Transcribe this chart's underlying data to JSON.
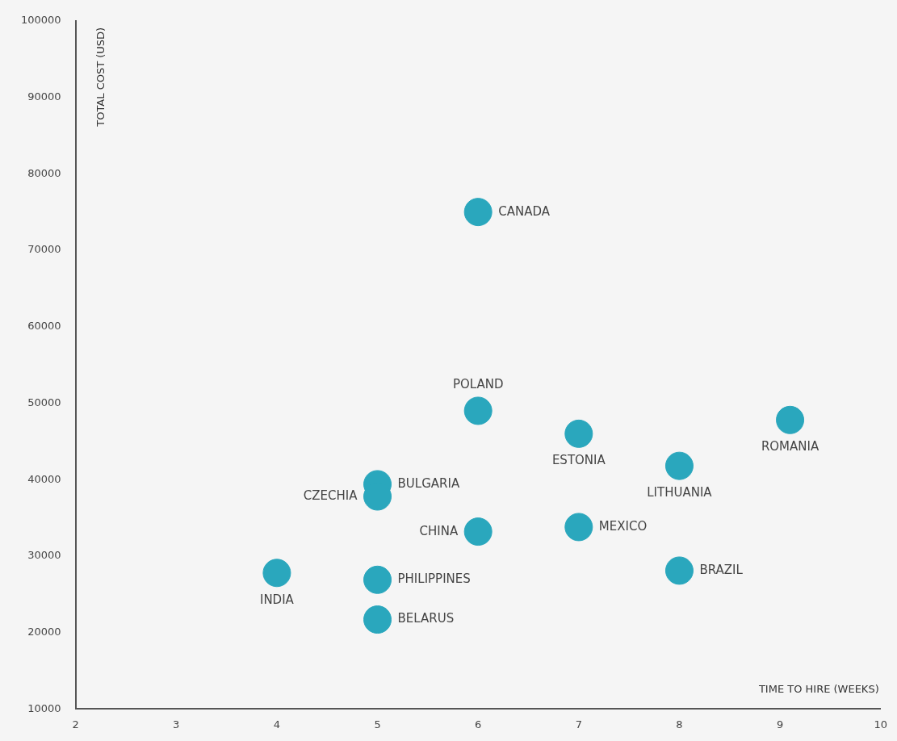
{
  "chart_data": {
    "type": "scatter",
    "xlabel": "TIME TO HIRE (WEEKS)",
    "ylabel": "TOTAL COST (USD)",
    "x": [
      6,
      6,
      7,
      9.1,
      8,
      5,
      5,
      6,
      7,
      8,
      4,
      5,
      5
    ],
    "series": [
      {
        "color": "#2aa7bd",
        "values": [
          75000,
          49000,
          46000,
          47800,
          41800,
          39400,
          37800,
          33200,
          33800,
          28100,
          27800,
          26900,
          21700
        ]
      }
    ],
    "annotations": [
      {
        "text": "CANADA",
        "x": 6,
        "y": 75000
      },
      {
        "text": "POLAND",
        "x": 6,
        "y": 49000
      },
      {
        "text": "ESTONIA",
        "x": 7,
        "y": 46000
      },
      {
        "text": "ROMANIA",
        "x": 9.1,
        "y": 47800
      },
      {
        "text": "LITHUANIA",
        "x": 8,
        "y": 41800
      },
      {
        "text": "BULGARIA",
        "x": 5,
        "y": 39400
      },
      {
        "text": "CZECHIA",
        "x": 5,
        "y": 37800
      },
      {
        "text": "CHINA",
        "x": 6,
        "y": 33200
      },
      {
        "text": "MEXICO",
        "x": 7,
        "y": 33800
      },
      {
        "text": "BRAZIL",
        "x": 8,
        "y": 28100
      },
      {
        "text": "INDIA",
        "x": 4,
        "y": 27800
      },
      {
        "text": "PHILIPPINES",
        "x": 5,
        "y": 26900
      },
      {
        "text": "BELARUS",
        "x": 5,
        "y": 21700
      }
    ],
    "xlim": [
      2,
      10
    ],
    "xticks": [
      2,
      3,
      4,
      5,
      6,
      7,
      8,
      9,
      10
    ],
    "ylim": [
      10000,
      100000
    ],
    "yticks": [
      10000,
      20000,
      30000,
      40000,
      50000,
      60000,
      70000,
      80000,
      90000,
      100000
    ],
    "grid": false,
    "legend": false,
    "marker": "circle"
  }
}
